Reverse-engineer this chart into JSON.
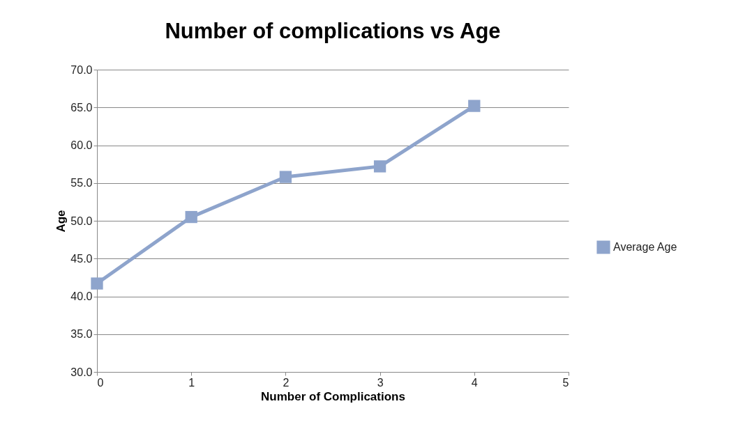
{
  "chart_data": {
    "type": "line",
    "title": "Number of complications vs Age",
    "xlabel": "Number of Complications",
    "ylabel": "Age",
    "x": [
      0,
      1,
      2,
      3,
      4
    ],
    "series": [
      {
        "name": "Average Age",
        "color": "#8ea4cc",
        "values": [
          41.7,
          50.5,
          55.8,
          57.2,
          65.2
        ]
      }
    ],
    "xlim": [
      0,
      5
    ],
    "xticks": [
      0,
      1,
      2,
      3,
      4,
      5
    ],
    "ylim": [
      30,
      70
    ],
    "yticks": [
      {
        "value": 30,
        "label": "30.0"
      },
      {
        "value": 35,
        "label": "35.0"
      },
      {
        "value": 40,
        "label": "40.0"
      },
      {
        "value": 45,
        "label": "45.0"
      },
      {
        "value": 50,
        "label": "50.0"
      },
      {
        "value": 55,
        "label": "55.0"
      },
      {
        "value": 60,
        "label": "60.0"
      },
      {
        "value": 65,
        "label": "65.0"
      },
      {
        "value": 70,
        "label": "70.0"
      }
    ],
    "grid": "y",
    "legend": "right",
    "marker": "square",
    "line_style": "solid"
  }
}
